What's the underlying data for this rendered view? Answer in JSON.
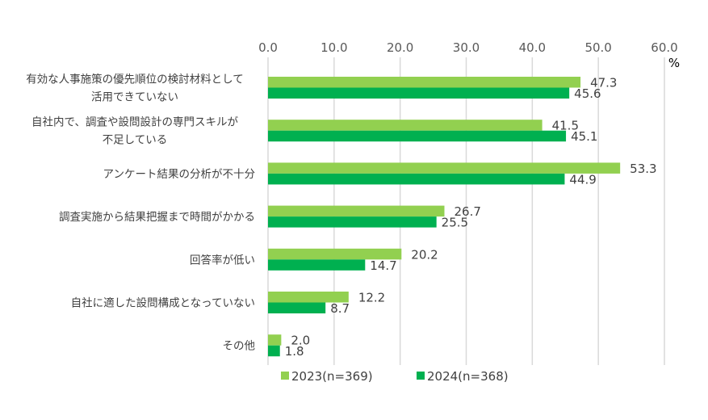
{
  "chart_data": {
    "type": "bar",
    "orientation": "horizontal",
    "title": "",
    "xlabel": "",
    "ylabel": "",
    "unit_label": "%",
    "xlim": [
      0,
      60
    ],
    "xticks": [
      "0.0",
      "10.0",
      "20.0",
      "30.0",
      "40.0",
      "50.0",
      "60.0"
    ],
    "grid": true,
    "legend_position": "bottom",
    "categories": [
      [
        "有効な人事施策の優先順位の検討材料として",
        "活用できていない"
      ],
      [
        "自社内で、調査や設問設計の専門スキルが",
        "不足している"
      ],
      [
        "アンケート結果の分析が不十分"
      ],
      [
        "調査実施から結果把握まで時間がかかる"
      ],
      [
        "回答率が低い"
      ],
      [
        "自社に適した設問構成となっていない"
      ],
      [
        "その他"
      ]
    ],
    "series": [
      {
        "name": "2023(n=369)",
        "color": "#92D050",
        "values": [
          47.3,
          41.5,
          53.3,
          26.7,
          20.2,
          12.2,
          2.0
        ],
        "labels": [
          "47.3",
          "41.5",
          "53.3",
          "26.7",
          "20.2",
          "12.2",
          "2.0"
        ]
      },
      {
        "name": "2024(n=368)",
        "color": "#00B050",
        "values": [
          45.6,
          45.1,
          44.9,
          25.5,
          14.7,
          8.7,
          1.8
        ],
        "labels": [
          "45.6",
          "45.1",
          "44.9",
          "25.5",
          "14.7",
          "8.7",
          "1.8"
        ]
      }
    ]
  }
}
